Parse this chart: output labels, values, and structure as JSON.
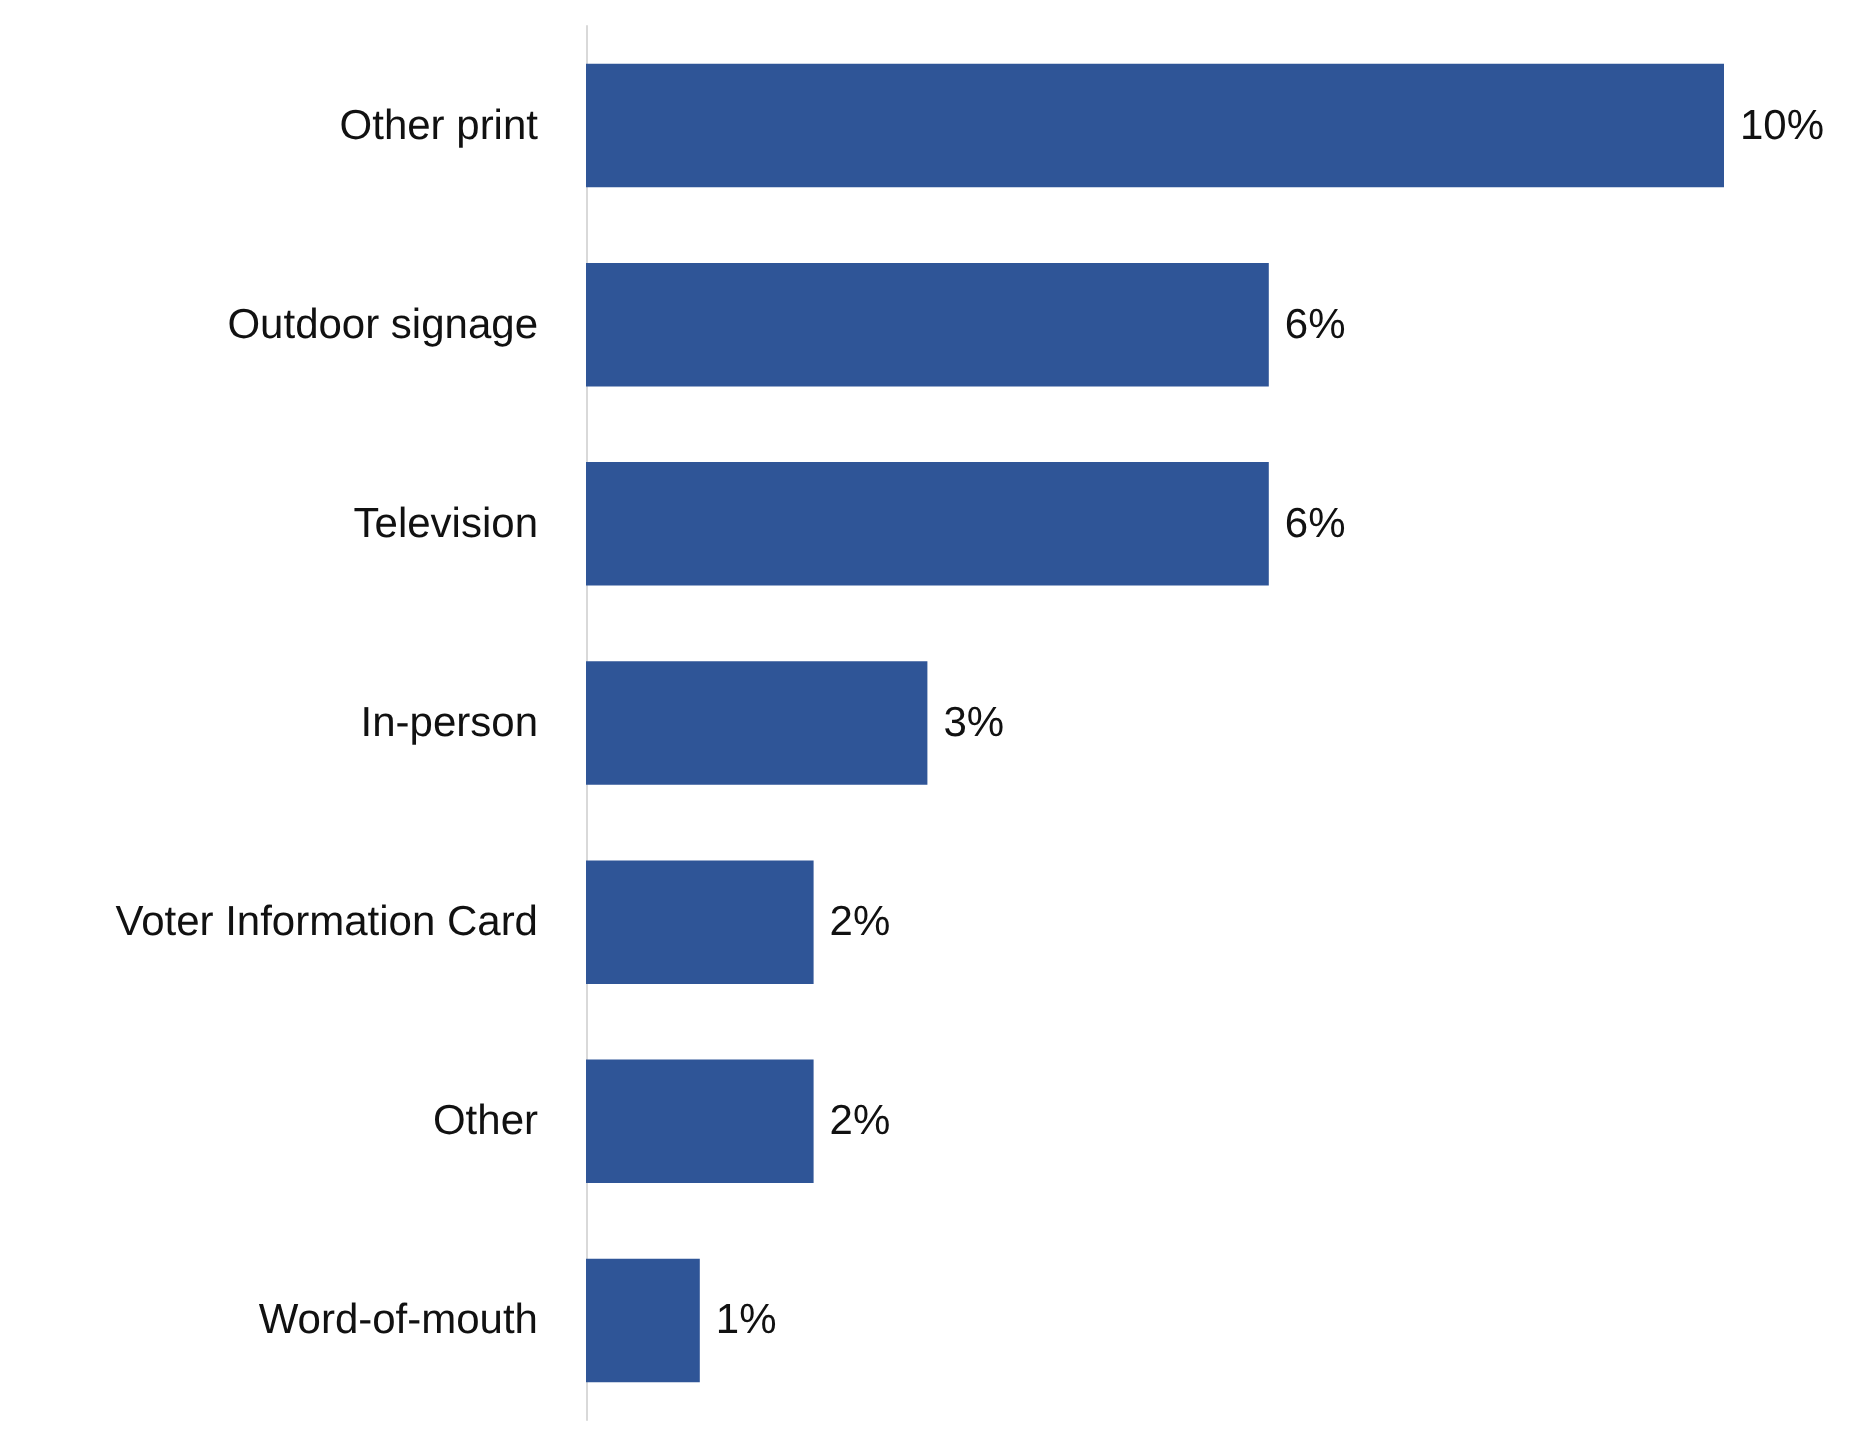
{
  "chart_data": {
    "type": "bar",
    "orientation": "horizontal",
    "categories": [
      "Other print",
      "Outdoor signage",
      "Television",
      "In-person",
      "Voter Information Card",
      "Other",
      "Word-of-mouth"
    ],
    "series": [
      {
        "color": "#2f5597",
        "values": [
          10,
          6,
          6,
          3,
          2,
          2,
          1
        ],
        "value_labels": [
          "10%",
          "6%",
          "6%",
          "3%",
          "2%",
          "2%",
          "1%"
        ]
      }
    ]
  }
}
